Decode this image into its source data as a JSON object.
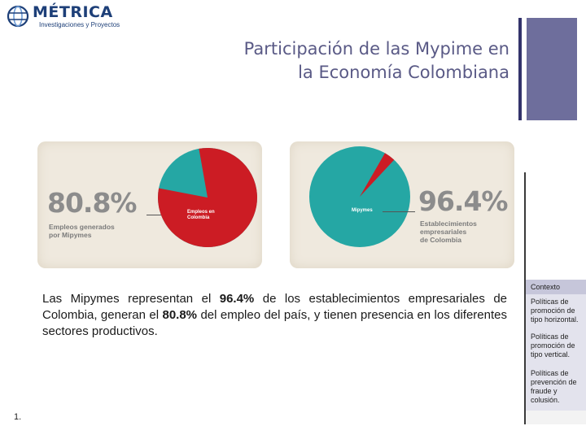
{
  "logo": {
    "name": "MÉTRICA",
    "subtitle": "Investigaciones y Proyectos"
  },
  "title": {
    "line1": "Participación de las Mypime en",
    "line2": "la Economía Colombiana"
  },
  "cards": {
    "left": {
      "percent": "80.8%",
      "caption_line1": "Empleos generados",
      "caption_line2": "por Mipymes",
      "pie_label_line1": "Empleos en",
      "pie_label_line2": "Colombia",
      "share": 0.808
    },
    "right": {
      "percent": "96.4%",
      "caption_line1": "Establecimientos",
      "caption_line2": "empresariales",
      "caption_line3": "de Colombia",
      "pie_label": "Mipymes",
      "share": 0.964
    }
  },
  "body": {
    "pre1": "Las Mipymes representan el ",
    "bold1": "96.4%",
    "mid": " de los establecimientos empresariales de Colombia, generan el ",
    "bold2": "80.8%",
    "post": " del empleo del país, y tienen presencia en los diferentes sectores productivos."
  },
  "slide_number": "1.",
  "nav": {
    "items": [
      "Contexto",
      "Políticas de promoción de tipo horizontal.",
      "Políticas de promoción de tipo vertical.",
      "Políticas de prevención de fraude y colusión."
    ]
  },
  "colors": {
    "red": "#cc1c24",
    "teal": "#25a7a4",
    "title": "#5a5a86",
    "accent_bar": "#6e6e9c"
  }
}
